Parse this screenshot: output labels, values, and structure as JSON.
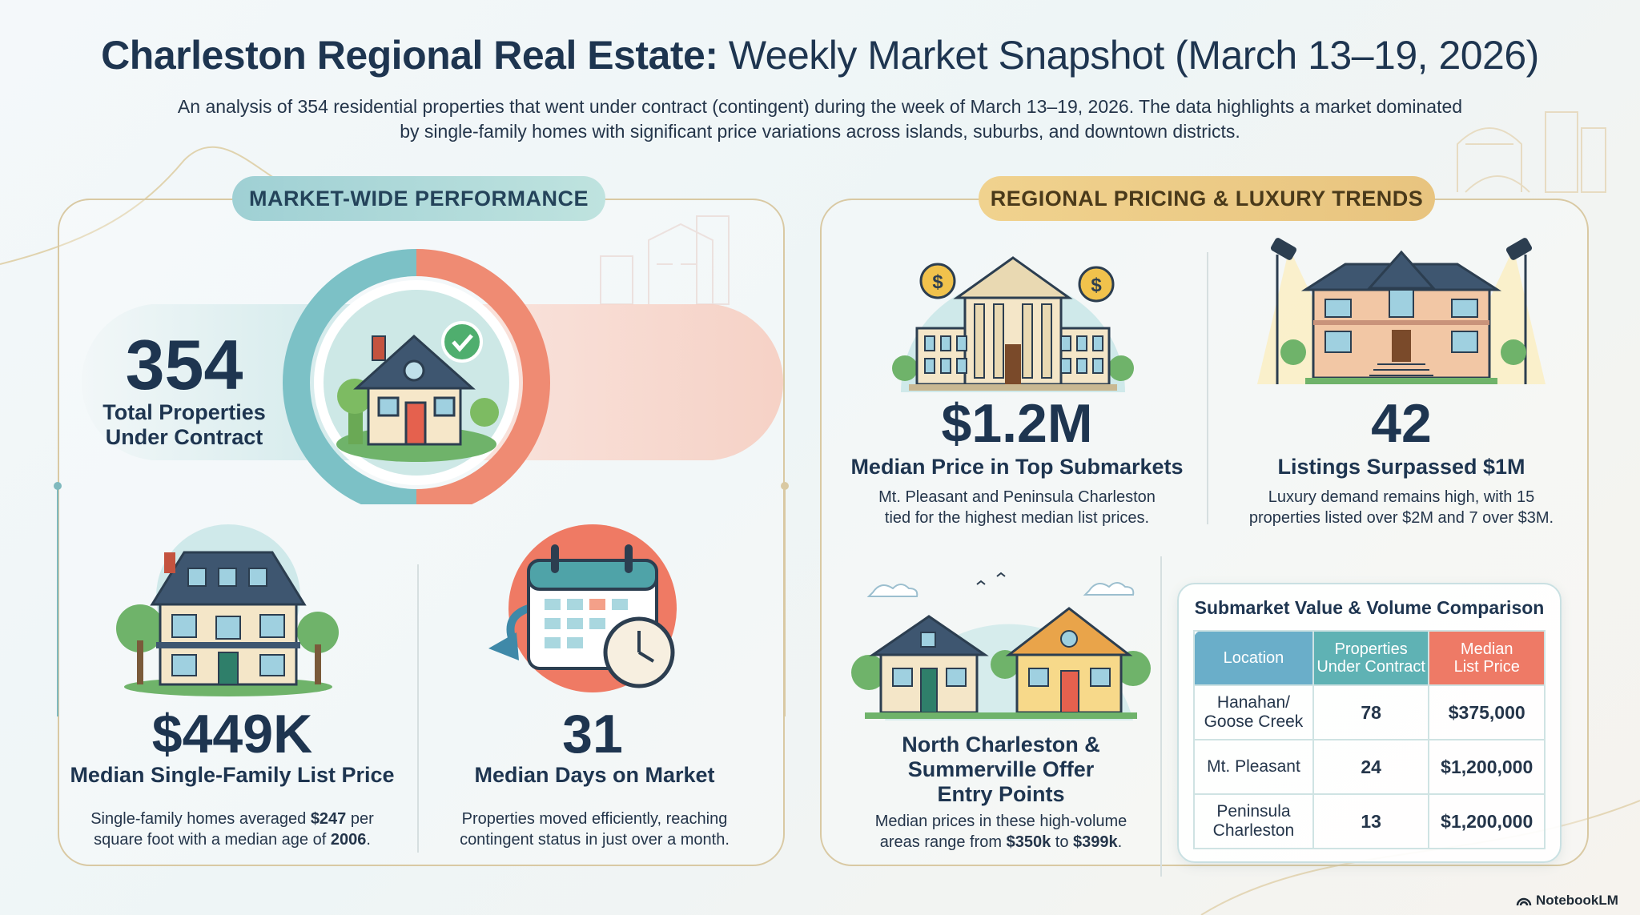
{
  "header": {
    "title_bold": "Charleston Regional Real Estate:",
    "title_rest": "Weekly Market Snapshot (March 13–19, 2026)",
    "subtitle_line1": "An analysis of 354 residential properties that went under contract (contingent) during the week of March 13–19, 2026. The data highlights a market dominated",
    "subtitle_line2": "by single-family homes with significant price variations across islands, suburbs, and downtown districts."
  },
  "market_wide": {
    "section_label": "MARKET-WIDE PERFORMANCE",
    "total": {
      "value": "354",
      "label_line1": "Total Properties",
      "label_line2": "Under Contract"
    },
    "median_price": {
      "value": "$449K",
      "label": "Median Single-Family List Price",
      "desc_line1_pre": "Single-family homes averaged ",
      "desc_line1_bold": "$247",
      "desc_line1_post": " per",
      "desc_line2_pre": "square foot with a median age of ",
      "desc_line2_bold": "2006",
      "desc_line2_post": "."
    },
    "days_on_market": {
      "value": "31",
      "label": "Median Days on Market",
      "desc_line1": "Properties moved efficiently, reaching",
      "desc_line2": "contingent status in just over a month."
    }
  },
  "regional": {
    "section_label": "REGIONAL PRICING & LUXURY TRENDS",
    "top_median": {
      "value": "$1.2M",
      "label": "Median Price in Top Submarkets",
      "desc_line1": "Mt. Pleasant and Peninsula Charleston",
      "desc_line2": "tied for the highest median list prices."
    },
    "luxury": {
      "value": "42",
      "label": "Listings Surpassed $1M",
      "desc_line1": "Luxury demand remains high, with 15",
      "desc_line2": "properties listed over $2M and 7 over $3M."
    },
    "entry": {
      "label_line1": "North Charleston &",
      "label_line2": "Summerville Offer",
      "label_line3": "Entry Points",
      "desc_line1": "Median prices in these high-volume",
      "desc_line2_pre": "areas range from ",
      "desc_line2_bold1": "$350k",
      "desc_line2_mid": " to ",
      "desc_line2_bold2": "$399k",
      "desc_line2_post": "."
    },
    "table": {
      "title": "Submarket Value & Volume Comparison",
      "headers": {
        "location": "Location",
        "props_line1": "Properties",
        "props_line2": "Under Contract",
        "price_line1": "Median",
        "price_line2": "List Price"
      },
      "rows": [
        {
          "loc_line1": "Hanahan/",
          "loc_line2": "Goose Creek",
          "props": "78",
          "price": "$375,000"
        },
        {
          "loc_line1": "Mt. Pleasant",
          "loc_line2": "",
          "props": "24",
          "price": "$1,200,000"
        },
        {
          "loc_line1": "Peninsula",
          "loc_line2": "Charleston",
          "props": "13",
          "price": "$1,200,000"
        }
      ]
    }
  },
  "footer": {
    "brand": "NotebookLM"
  },
  "colors": {
    "navy": "#1e3550",
    "teal": "#6fb9bf",
    "coral": "#ef8b73",
    "gold": "#e8c47f",
    "header_teal": "#5fb2b4",
    "header_coral": "#ee7a66",
    "header_blue": "#6aaec9"
  },
  "icons": [
    "house-check-icon",
    "family-house-icon",
    "calendar-clock-icon",
    "bank-building-icon",
    "dollar-coin-icon",
    "luxury-mansion-icon",
    "spotlight-icon",
    "suburban-houses-icon",
    "notebooklm-logo-icon"
  ]
}
